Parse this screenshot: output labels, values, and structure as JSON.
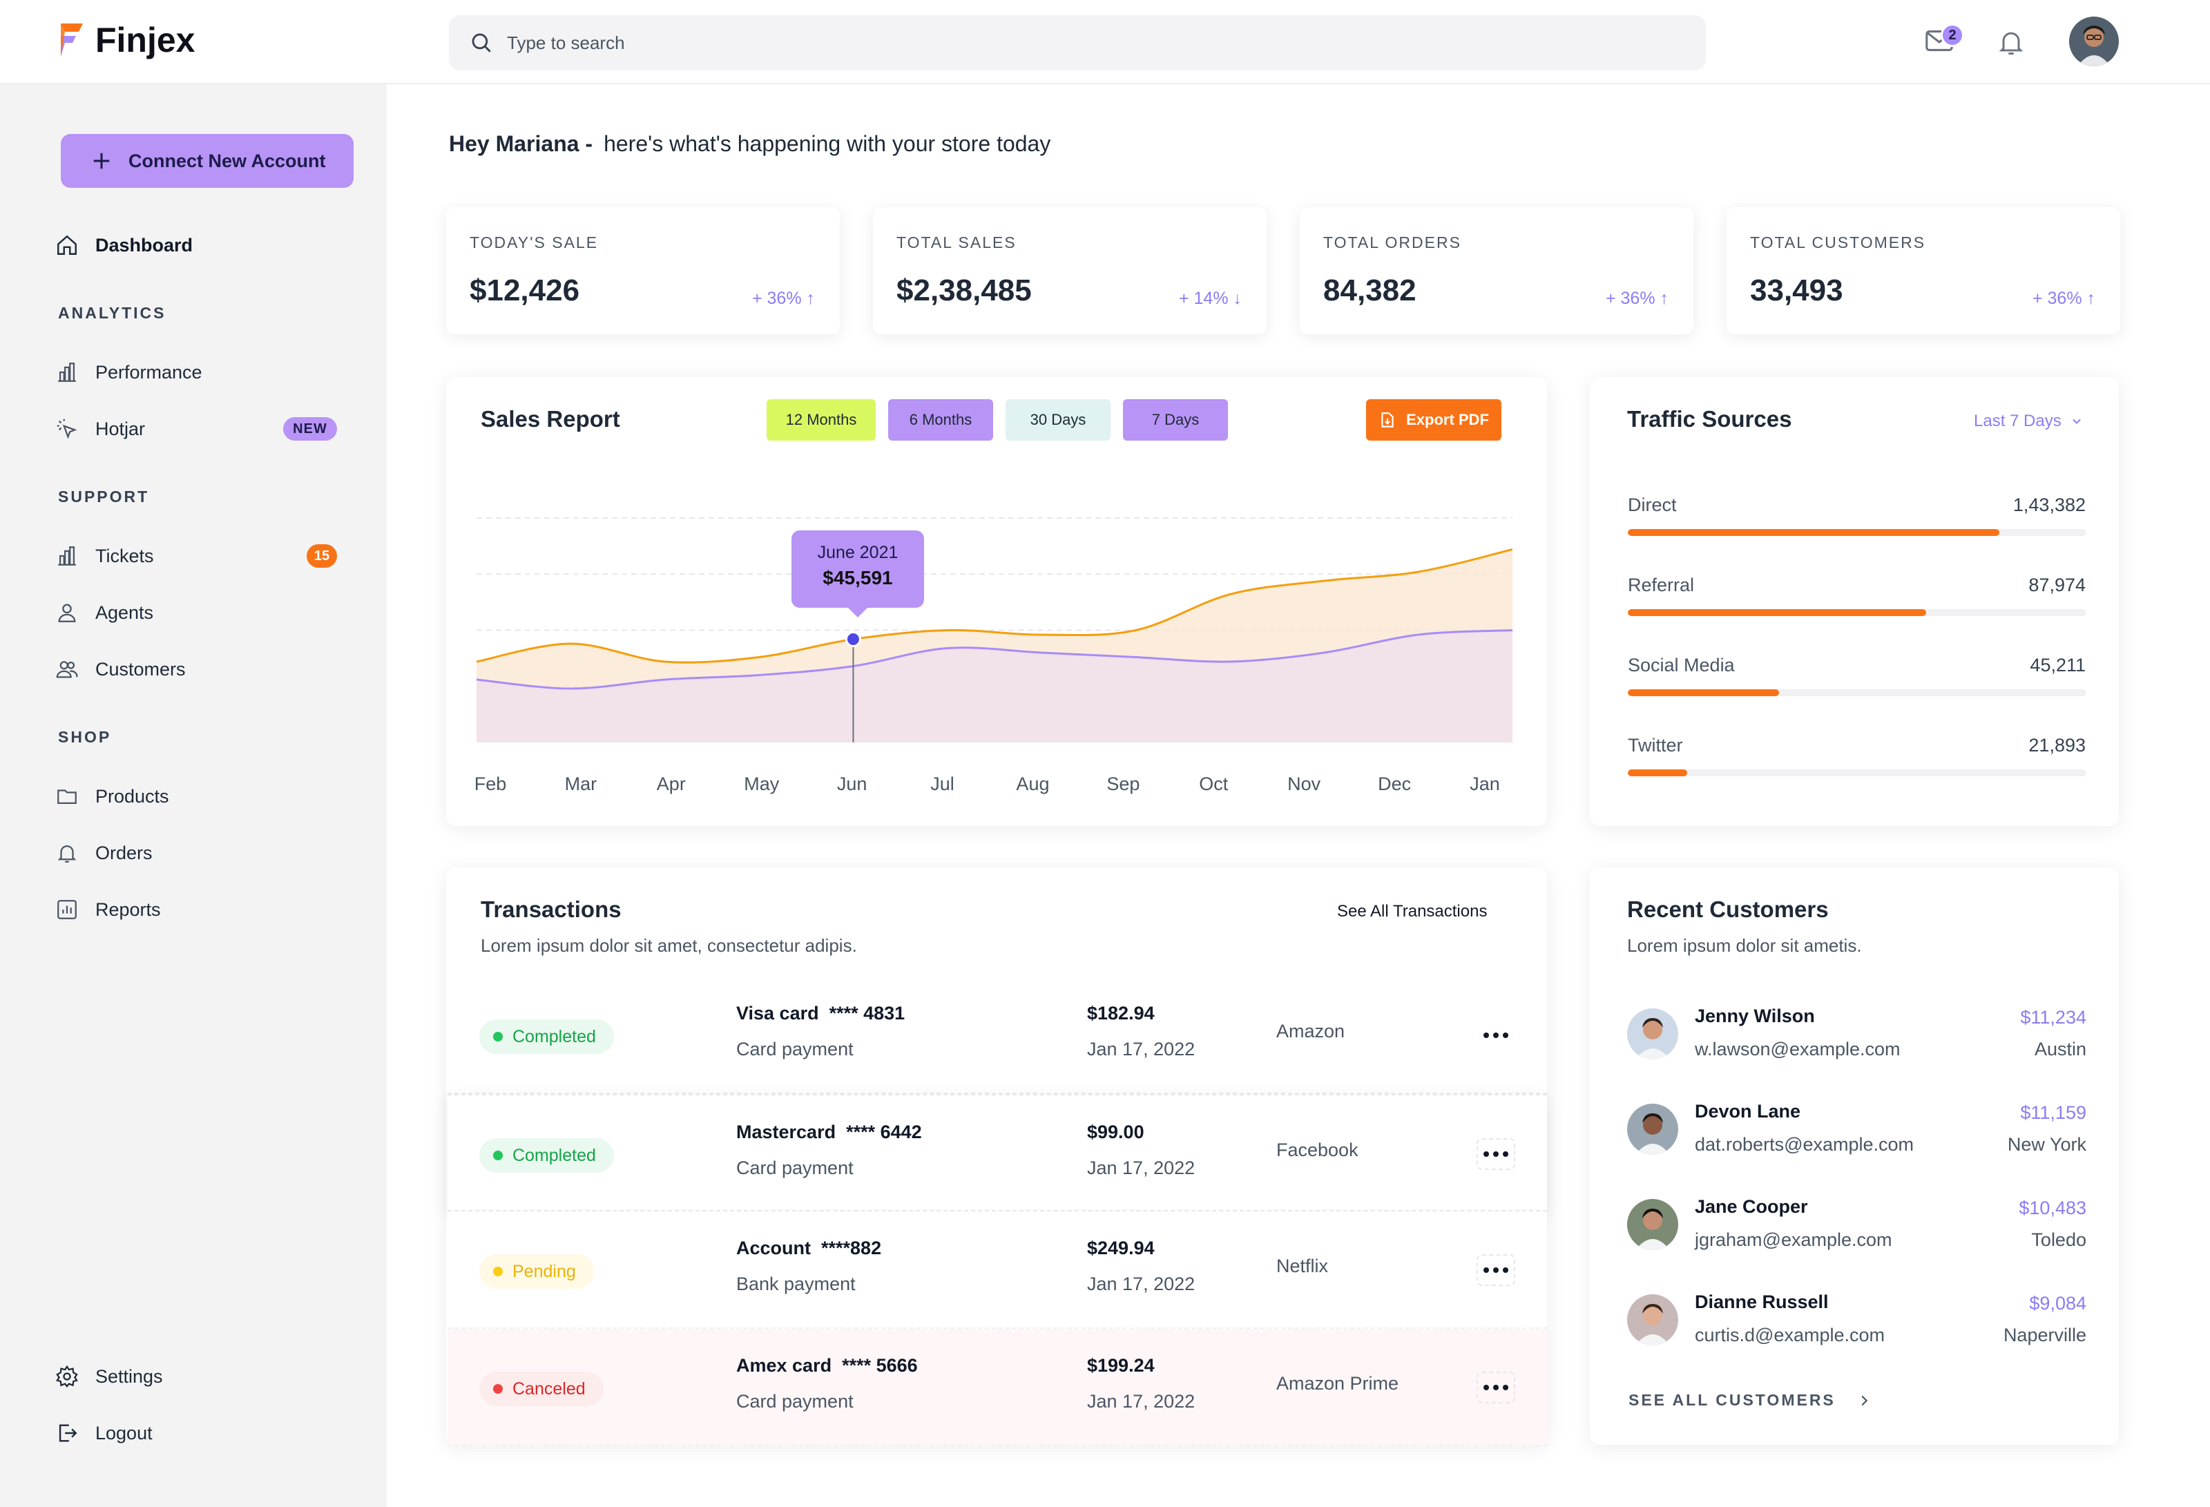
{
  "brand": {
    "name": "Finjex",
    "accent": "#b794f6",
    "orange": "#f97316"
  },
  "search": {
    "placeholder": "Type to search"
  },
  "header": {
    "mail_count": "2"
  },
  "sidebar": {
    "connect_button": "Connect New Account",
    "dashboard": "Dashboard",
    "analytics_title": "ANALYTICS",
    "performance": "Performance",
    "hotjar": "Hotjar",
    "hotjar_badge": "NEW",
    "support_title": "SUPPORT",
    "tickets": "Tickets",
    "tickets_count": "15",
    "agents": "Agents",
    "customers": "Customers",
    "shop_title": "SHOP",
    "products": "Products",
    "orders": "Orders",
    "reports": "Reports",
    "settings": "Settings",
    "logout": "Logout"
  },
  "greeting": {
    "name": "Hey Mariana -",
    "text": "here's what's happening with your store today"
  },
  "stats": [
    {
      "title": "TODAY'S SALE",
      "value": "$12,426",
      "change": "+ 36% ↑"
    },
    {
      "title": "TOTAL SALES",
      "value": "$2,38,485",
      "change": "+ 14% ↓"
    },
    {
      "title": "TOTAL ORDERS",
      "value": "84,382",
      "change": "+ 36% ↑"
    },
    {
      "title": "TOTAL CUSTOMERS",
      "value": "33,493",
      "change": "+ 36% ↑"
    }
  ],
  "sales_report": {
    "title": "Sales Report",
    "ranges": [
      "12 Months",
      "6 Months",
      "30 Days",
      "7 Days"
    ],
    "export": "Export PDF",
    "tooltip_label": "June 2021",
    "tooltip_value": "$45,591"
  },
  "chart_data": {
    "type": "area",
    "title": "Sales Report",
    "x": [
      "Feb",
      "Mar",
      "Apr",
      "May",
      "Jun",
      "Jul",
      "Aug",
      "Sep",
      "Oct",
      "Nov",
      "Dec",
      "Jan"
    ],
    "series": [
      {
        "values": [
          36,
          44,
          36,
          38,
          46,
          50,
          48,
          50,
          66,
          72,
          76,
          86
        ],
        "color": "#f59e0b"
      },
      {
        "values": [
          28,
          24,
          28,
          30,
          34,
          42,
          40,
          38,
          36,
          40,
          48,
          50
        ],
        "color": "#a78bfa"
      }
    ],
    "ylim": [
      0,
      100
    ],
    "grid": true,
    "highlight": {
      "x": "Jun",
      "label": "June 2021",
      "value": "$45,591"
    }
  },
  "traffic": {
    "title": "Traffic Sources",
    "range": "Last 7 Days",
    "rows": [
      {
        "label": "Direct",
        "value": "1,43,382",
        "share": 0.81
      },
      {
        "label": "Referral",
        "value": "87,974",
        "share": 0.65
      },
      {
        "label": "Social Media",
        "value": "45,211",
        "share": 0.33
      },
      {
        "label": "Twitter",
        "value": "21,893",
        "share": 0.13
      }
    ]
  },
  "transactions": {
    "title": "Transactions",
    "subtitle": "Lorem ipsum dolor sit amet, consectetur adipis.",
    "see_all": "See All Transactions",
    "rows": [
      {
        "status": "Completed",
        "name": "Visa card  **** 4831",
        "type": "Card payment",
        "amount": "$182.94",
        "date": "Jan 17, 2022",
        "merchant": "Amazon"
      },
      {
        "status": "Completed",
        "name": "Mastercard  **** 6442",
        "type": "Card payment",
        "amount": "$99.00",
        "date": "Jan 17, 2022",
        "merchant": "Facebook"
      },
      {
        "status": "Pending",
        "name": "Account  ****882",
        "type": "Bank payment",
        "amount": "$249.94",
        "date": "Jan 17, 2022",
        "merchant": "Netflix"
      },
      {
        "status": "Canceled",
        "name": "Amex card  **** 5666",
        "type": "Card payment",
        "amount": "$199.24",
        "date": "Jan 17, 2022",
        "merchant": "Amazon Prime"
      }
    ]
  },
  "recent_customers": {
    "title": "Recent Customers",
    "subtitle": "Lorem ipsum dolor sit ametis.",
    "see_all": "SEE ALL CUSTOMERS",
    "rows": [
      {
        "name": "Jenny Wilson",
        "email": "w.lawson@example.com",
        "amount": "$11,234",
        "city": "Austin"
      },
      {
        "name": "Devon Lane",
        "email": "dat.roberts@example.com",
        "amount": "$11,159",
        "city": "New York"
      },
      {
        "name": "Jane Cooper",
        "email": "jgraham@example.com",
        "amount": "$10,483",
        "city": "Toledo"
      },
      {
        "name": "Dianne Russell",
        "email": "curtis.d@example.com",
        "amount": "$9,084",
        "city": "Naperville"
      }
    ]
  }
}
